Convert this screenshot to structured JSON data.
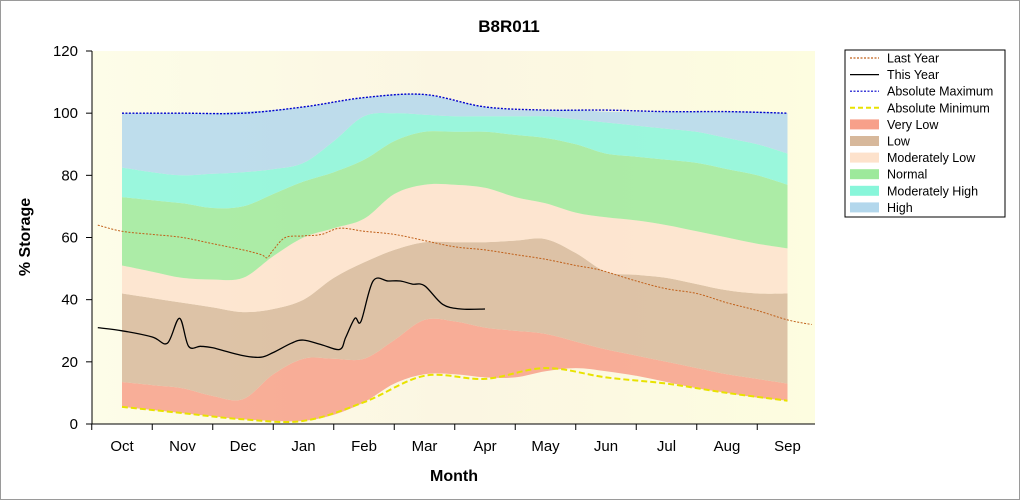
{
  "chart_data": {
    "type": "area",
    "title": "B8R011",
    "xlabel": "Month",
    "ylabel": "% Storage",
    "categories": [
      "Oct",
      "Nov",
      "Dec",
      "Jan",
      "Feb",
      "Mar",
      "Apr",
      "May",
      "Jun",
      "Jul",
      "Aug",
      "Sep"
    ],
    "ylim": [
      0,
      120
    ],
    "yticks": [
      0,
      20,
      40,
      60,
      80,
      100,
      120
    ],
    "grid": false,
    "legend_position": "right",
    "x": [
      0,
      0.5,
      1,
      1.5,
      2,
      2.5,
      3,
      3.5,
      4,
      4.5,
      5,
      5.5,
      6,
      6.5,
      7,
      7.5,
      8,
      8.5,
      9,
      9.5,
      10,
      10.5,
      11
    ],
    "bands": [
      {
        "name": "Very Low",
        "color": "#f7a08a",
        "lower": [
          5.5,
          4.5,
          3.5,
          2.5,
          1.5,
          1,
          1,
          3,
          7,
          13,
          16,
          16,
          15,
          15,
          17,
          18,
          17,
          15.5,
          13.5,
          11.5,
          10,
          8.5,
          7.5
        ],
        "upper": [
          13.5,
          12.5,
          11.5,
          9,
          8,
          16,
          21,
          21,
          21,
          27,
          33.5,
          33,
          31,
          30,
          29,
          26.5,
          24,
          22,
          20,
          18,
          16,
          14.5,
          13
        ]
      },
      {
        "name": "Low",
        "color": "#d7b89b",
        "lower": [
          13.5,
          12.5,
          11.5,
          9,
          8,
          16,
          21,
          21,
          21,
          27,
          33.5,
          33,
          31,
          30,
          29,
          26.5,
          24,
          22,
          20,
          18,
          16,
          14.5,
          13
        ],
        "upper": [
          42,
          40.5,
          39,
          37.5,
          36,
          37,
          40,
          47,
          52,
          56,
          58.5,
          58.5,
          58.5,
          59,
          59.5,
          55,
          49,
          48,
          47,
          45,
          43,
          42,
          42
        ]
      },
      {
        "name": "Moderately Low",
        "color": "#fde2cc",
        "lower": [
          42,
          40.5,
          39,
          37.5,
          36,
          37,
          40,
          47,
          52,
          56,
          58.5,
          58.5,
          58.5,
          59,
          59.5,
          55,
          49,
          48,
          47,
          45,
          43,
          42,
          42
        ],
        "upper": [
          51,
          49,
          47,
          46.5,
          47,
          54,
          60,
          63,
          66,
          74,
          77,
          77,
          76,
          73,
          71,
          68,
          66.5,
          65.5,
          64,
          62,
          60,
          58,
          56.5
        ]
      },
      {
        "name": "Normal",
        "color": "#9de99b",
        "lower": [
          51,
          49,
          47,
          46.5,
          47,
          54,
          60,
          63,
          66,
          74,
          77,
          77,
          76,
          73,
          71,
          68,
          66.5,
          65.5,
          64,
          62,
          60,
          58,
          56.5
        ],
        "upper": [
          73,
          72,
          71,
          69.5,
          70,
          74,
          78,
          81,
          85,
          91,
          94,
          94,
          94,
          93,
          92,
          90,
          87,
          86,
          85,
          84,
          82,
          80,
          77
        ]
      },
      {
        "name": "Moderately High",
        "color": "#88f6da",
        "lower": [
          73,
          72,
          71,
          69.5,
          70,
          74,
          78,
          81,
          85,
          91,
          94,
          94,
          94,
          93,
          92,
          90,
          87,
          86,
          85,
          84,
          82,
          80,
          77
        ],
        "upper": [
          82.5,
          81,
          80,
          80.5,
          81,
          82,
          84,
          91,
          99,
          100,
          99.5,
          99,
          99,
          99,
          99,
          98,
          97,
          96,
          95,
          94,
          92,
          90,
          87
        ]
      },
      {
        "name": "High",
        "color": "#b3d7ec",
        "lower": [
          82.5,
          81,
          80,
          80.5,
          81,
          82,
          84,
          91,
          99,
          100,
          99.5,
          99,
          99,
          99,
          99,
          98,
          97,
          96,
          95,
          94,
          92,
          90,
          87
        ],
        "upper": [
          100,
          100,
          100,
          100,
          100.5,
          101,
          102,
          103.5,
          105,
          106,
          106,
          104,
          102,
          101,
          101,
          101,
          100.5,
          100.5,
          100.5,
          100.5,
          100.5,
          100.5,
          100
        ]
      }
    ],
    "series": [
      {
        "name": "Last Year",
        "color": "#c0601a",
        "style": "dotted",
        "x": [
          -0.4,
          0,
          0.5,
          1,
          1.5,
          2,
          2.3,
          2.4,
          2.5,
          2.7,
          3,
          3.3,
          3.6,
          4,
          4.5,
          5,
          5.5,
          6,
          6.5,
          7,
          7.5,
          7.8,
          8,
          8.5,
          9,
          9.5,
          10,
          10.5,
          11,
          11.4
        ],
        "y": [
          64,
          62,
          61,
          60,
          58,
          56,
          54.5,
          53.5,
          56,
          60,
          60.5,
          61,
          63,
          62,
          61,
          59,
          57,
          56,
          54.5,
          53,
          51,
          50,
          49,
          46,
          43.5,
          42,
          39,
          36.5,
          33.5,
          32
        ]
      },
      {
        "name": "This Year",
        "color": "#000000",
        "style": "solid",
        "x": [
          -0.4,
          0,
          0.5,
          0.75,
          0.95,
          1.1,
          1.3,
          1.5,
          2,
          2.3,
          2.5,
          2.8,
          3,
          3.3,
          3.6,
          3.7,
          3.85,
          3.95,
          4.15,
          4.4,
          4.6,
          4.8,
          5,
          5.3,
          5.6,
          6
        ],
        "y": [
          31,
          30,
          28,
          26,
          34,
          25,
          25,
          24.5,
          22,
          21.5,
          23,
          26,
          27,
          25.5,
          24,
          28,
          34,
          33,
          46,
          46,
          46,
          45,
          44.5,
          38.5,
          37,
          37
        ]
      },
      {
        "name": "Absolute Maximum",
        "color": "#0000cc",
        "style": "dotted",
        "x": [
          0,
          1,
          2,
          3,
          4,
          5,
          6,
          7,
          8,
          9,
          10,
          11
        ],
        "y": [
          100,
          100,
          100,
          102,
          105,
          106,
          102,
          101,
          101,
          100.5,
          100.5,
          100
        ]
      },
      {
        "name": "Absolute Minimum",
        "color": "#e8e200",
        "style": "dashed",
        "x": [
          0,
          1,
          2,
          3,
          4,
          5,
          6,
          7,
          8,
          9,
          10,
          11
        ],
        "y": [
          5.5,
          3.5,
          1.5,
          1,
          7,
          15.5,
          14.5,
          18,
          15,
          13,
          10,
          7.5
        ]
      }
    ]
  }
}
